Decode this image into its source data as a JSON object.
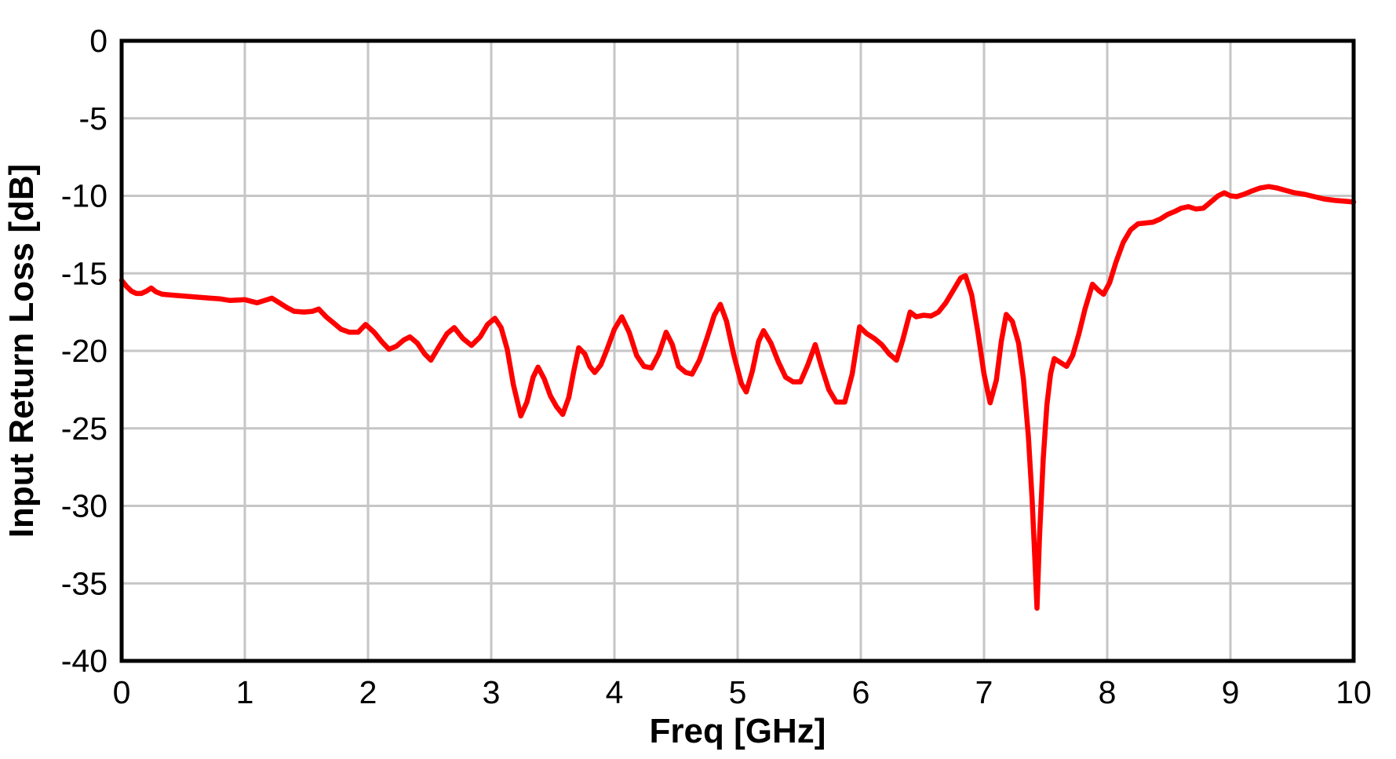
{
  "chart_data": {
    "type": "line",
    "title": "",
    "xlabel": "Freq [GHz]",
    "ylabel": "Input Return Loss [dB]",
    "xlim": [
      0,
      10
    ],
    "ylim": [
      -40,
      0
    ],
    "xticks": [
      0,
      1,
      2,
      3,
      4,
      5,
      6,
      7,
      8,
      9,
      10
    ],
    "yticks": [
      0,
      -5,
      -10,
      -15,
      -20,
      -25,
      -30,
      -35,
      -40
    ],
    "grid": true,
    "legend": null,
    "colors": {
      "trace": "#FF0000",
      "grid": "#C6C6C6",
      "axis": "#000000",
      "background": "#FFFFFF"
    },
    "series": [
      {
        "color": "#FF0000",
        "points": [
          [
            0.0,
            -15.45
          ],
          [
            0.04,
            -15.85
          ],
          [
            0.08,
            -16.15
          ],
          [
            0.12,
            -16.3
          ],
          [
            0.16,
            -16.3
          ],
          [
            0.2,
            -16.15
          ],
          [
            0.24,
            -15.95
          ],
          [
            0.28,
            -16.2
          ],
          [
            0.33,
            -16.35
          ],
          [
            0.4,
            -16.4
          ],
          [
            0.48,
            -16.45
          ],
          [
            0.56,
            -16.5
          ],
          [
            0.64,
            -16.55
          ],
          [
            0.72,
            -16.6
          ],
          [
            0.8,
            -16.65
          ],
          [
            0.88,
            -16.75
          ],
          [
            0.95,
            -16.72
          ],
          [
            1.0,
            -16.7
          ],
          [
            1.05,
            -16.8
          ],
          [
            1.1,
            -16.9
          ],
          [
            1.16,
            -16.75
          ],
          [
            1.22,
            -16.6
          ],
          [
            1.28,
            -16.9
          ],
          [
            1.34,
            -17.2
          ],
          [
            1.4,
            -17.45
          ],
          [
            1.48,
            -17.5
          ],
          [
            1.55,
            -17.45
          ],
          [
            1.6,
            -17.3
          ],
          [
            1.66,
            -17.8
          ],
          [
            1.72,
            -18.2
          ],
          [
            1.78,
            -18.6
          ],
          [
            1.85,
            -18.8
          ],
          [
            1.92,
            -18.8
          ],
          [
            1.98,
            -18.3
          ],
          [
            2.05,
            -18.8
          ],
          [
            2.11,
            -19.4
          ],
          [
            2.17,
            -19.9
          ],
          [
            2.23,
            -19.7
          ],
          [
            2.29,
            -19.3
          ],
          [
            2.34,
            -19.1
          ],
          [
            2.4,
            -19.5
          ],
          [
            2.46,
            -20.2
          ],
          [
            2.51,
            -20.6
          ],
          [
            2.57,
            -19.8
          ],
          [
            2.64,
            -18.9
          ],
          [
            2.7,
            -18.5
          ],
          [
            2.77,
            -19.2
          ],
          [
            2.84,
            -19.65
          ],
          [
            2.91,
            -19.1
          ],
          [
            2.97,
            -18.3
          ],
          [
            3.03,
            -17.9
          ],
          [
            3.08,
            -18.5
          ],
          [
            3.13,
            -19.9
          ],
          [
            3.18,
            -22.2
          ],
          [
            3.24,
            -24.2
          ],
          [
            3.29,
            -23.3
          ],
          [
            3.34,
            -21.7
          ],
          [
            3.38,
            -21.05
          ],
          [
            3.43,
            -21.8
          ],
          [
            3.48,
            -22.9
          ],
          [
            3.53,
            -23.6
          ],
          [
            3.58,
            -24.1
          ],
          [
            3.63,
            -23.0
          ],
          [
            3.67,
            -21.3
          ],
          [
            3.71,
            -19.8
          ],
          [
            3.76,
            -20.2
          ],
          [
            3.8,
            -21.0
          ],
          [
            3.84,
            -21.4
          ],
          [
            3.89,
            -20.9
          ],
          [
            3.94,
            -19.9
          ],
          [
            4.0,
            -18.6
          ],
          [
            4.06,
            -17.8
          ],
          [
            4.12,
            -18.8
          ],
          [
            4.18,
            -20.3
          ],
          [
            4.24,
            -21.0
          ],
          [
            4.3,
            -21.1
          ],
          [
            4.36,
            -20.2
          ],
          [
            4.42,
            -18.8
          ],
          [
            4.47,
            -19.6
          ],
          [
            4.52,
            -21.0
          ],
          [
            4.58,
            -21.4
          ],
          [
            4.63,
            -21.5
          ],
          [
            4.69,
            -20.6
          ],
          [
            4.75,
            -19.2
          ],
          [
            4.81,
            -17.7
          ],
          [
            4.86,
            -17.0
          ],
          [
            4.91,
            -18.1
          ],
          [
            4.97,
            -20.3
          ],
          [
            5.03,
            -22.1
          ],
          [
            5.07,
            -22.65
          ],
          [
            5.12,
            -21.3
          ],
          [
            5.17,
            -19.4
          ],
          [
            5.21,
            -18.7
          ],
          [
            5.27,
            -19.5
          ],
          [
            5.33,
            -20.7
          ],
          [
            5.39,
            -21.7
          ],
          [
            5.45,
            -22.0
          ],
          [
            5.51,
            -22.0
          ],
          [
            5.57,
            -20.9
          ],
          [
            5.63,
            -19.6
          ],
          [
            5.68,
            -21.0
          ],
          [
            5.74,
            -22.5
          ],
          [
            5.8,
            -23.3
          ],
          [
            5.87,
            -23.3
          ],
          [
            5.93,
            -21.5
          ],
          [
            5.99,
            -18.45
          ],
          [
            6.05,
            -18.9
          ],
          [
            6.11,
            -19.2
          ],
          [
            6.17,
            -19.6
          ],
          [
            6.23,
            -20.2
          ],
          [
            6.29,
            -20.6
          ],
          [
            6.34,
            -19.3
          ],
          [
            6.4,
            -17.5
          ],
          [
            6.45,
            -17.8
          ],
          [
            6.51,
            -17.7
          ],
          [
            6.57,
            -17.75
          ],
          [
            6.63,
            -17.5
          ],
          [
            6.69,
            -16.9
          ],
          [
            6.75,
            -16.1
          ],
          [
            6.81,
            -15.3
          ],
          [
            6.85,
            -15.15
          ],
          [
            6.9,
            -16.4
          ],
          [
            6.95,
            -18.8
          ],
          [
            7.0,
            -21.5
          ],
          [
            7.05,
            -23.35
          ],
          [
            7.1,
            -21.9
          ],
          [
            7.14,
            -19.4
          ],
          [
            7.18,
            -17.65
          ],
          [
            7.23,
            -18.1
          ],
          [
            7.28,
            -19.5
          ],
          [
            7.32,
            -21.8
          ],
          [
            7.36,
            -25.5
          ],
          [
            7.39,
            -29.5
          ],
          [
            7.41,
            -33.0
          ],
          [
            7.43,
            -36.6
          ],
          [
            7.45,
            -32.0
          ],
          [
            7.48,
            -27.0
          ],
          [
            7.51,
            -23.5
          ],
          [
            7.54,
            -21.5
          ],
          [
            7.57,
            -20.5
          ],
          [
            7.62,
            -20.75
          ],
          [
            7.67,
            -21.0
          ],
          [
            7.72,
            -20.3
          ],
          [
            7.77,
            -18.9
          ],
          [
            7.82,
            -17.3
          ],
          [
            7.88,
            -15.7
          ],
          [
            7.93,
            -16.1
          ],
          [
            7.97,
            -16.35
          ],
          [
            8.02,
            -15.6
          ],
          [
            8.07,
            -14.3
          ],
          [
            8.13,
            -13.0
          ],
          [
            8.19,
            -12.2
          ],
          [
            8.25,
            -11.8
          ],
          [
            8.31,
            -11.75
          ],
          [
            8.37,
            -11.7
          ],
          [
            8.43,
            -11.5
          ],
          [
            8.49,
            -11.2
          ],
          [
            8.55,
            -11.0
          ],
          [
            8.6,
            -10.8
          ],
          [
            8.66,
            -10.7
          ],
          [
            8.72,
            -10.85
          ],
          [
            8.78,
            -10.8
          ],
          [
            8.84,
            -10.4
          ],
          [
            8.9,
            -10.0
          ],
          [
            8.95,
            -9.8
          ],
          [
            9.0,
            -10.0
          ],
          [
            9.05,
            -10.05
          ],
          [
            9.11,
            -9.9
          ],
          [
            9.17,
            -9.7
          ],
          [
            9.24,
            -9.5
          ],
          [
            9.31,
            -9.4
          ],
          [
            9.38,
            -9.5
          ],
          [
            9.45,
            -9.65
          ],
          [
            9.52,
            -9.8
          ],
          [
            9.6,
            -9.9
          ],
          [
            9.68,
            -10.05
          ],
          [
            9.76,
            -10.2
          ],
          [
            9.85,
            -10.3
          ],
          [
            9.93,
            -10.35
          ],
          [
            10.0,
            -10.4
          ]
        ]
      }
    ]
  }
}
